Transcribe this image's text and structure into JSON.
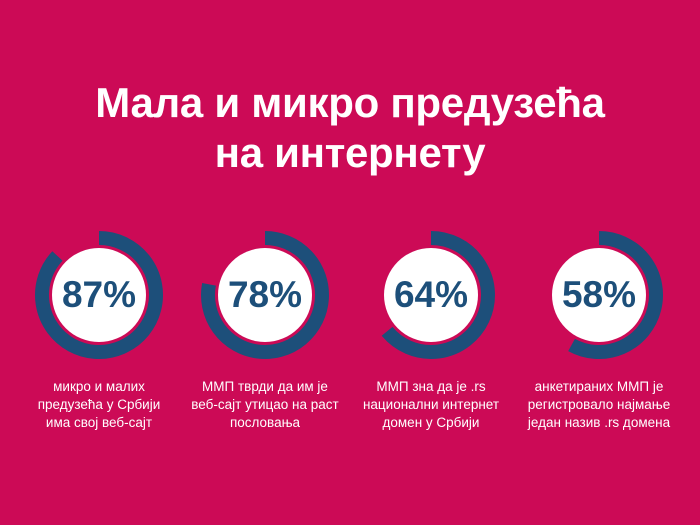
{
  "title": {
    "line1": "Мала и микро предузећа",
    "line2": "на интернету"
  },
  "colors": {
    "background": "#cc0a56",
    "ring": "#1d4f7a",
    "circle": "#ffffff",
    "text": "#ffffff"
  },
  "stats": [
    {
      "value": 87,
      "label": "87%",
      "desc": "микро и  малих предузећа у Србији има свој веб-сајт"
    },
    {
      "value": 78,
      "label": "78%",
      "desc": "ММП тврди да им је веб-сајт утицао на раст пословања"
    },
    {
      "value": 64,
      "label": "64%",
      "desc": "ММП зна да је .rs национални интернет домен у Србији"
    },
    {
      "value": 58,
      "label": "58%",
      "desc": "анкетираних ММП је регистровало најмање један назив .rs домена"
    }
  ]
}
